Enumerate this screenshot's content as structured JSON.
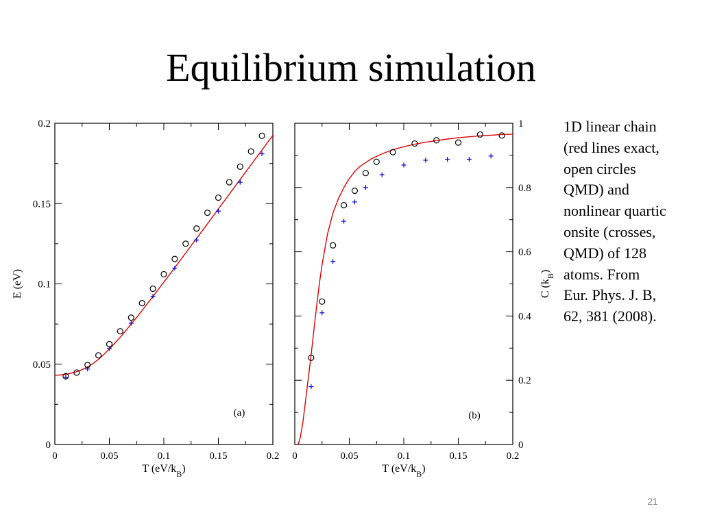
{
  "slide": {
    "title": "Equilibrium simulation",
    "caption_lines": [
      "1D linear chain",
      "(red lines exact,",
      "open circles",
      "QMD) and",
      "nonlinear quartic",
      "onsite (crosses,",
      "QMD) of 128",
      "atoms.  From",
      "Eur. Phys. J. B,",
      "62, 381 (2008)."
    ],
    "page_number": "21"
  },
  "colors": {
    "exact": "#e00000",
    "linear_qmd": "#000000",
    "quartic_qmd": "#0000e0",
    "axis": "#000000"
  },
  "chart_data": [
    {
      "type": "line",
      "panel_label": "(a)",
      "xlabel": "T (eV/k_B)",
      "ylabel": "E (eV)",
      "ylabel_side": "left",
      "xlim": [
        0,
        0.2
      ],
      "ylim": [
        0,
        0.2
      ],
      "xticks": [
        0,
        0.05,
        0.1,
        0.15,
        0.2
      ],
      "xtick_labels": [
        "0",
        "0.05",
        "0.1",
        "0.15",
        "0.2"
      ],
      "yticks": [
        0,
        0.05,
        0.1,
        0.15,
        0.2
      ],
      "ytick_labels": [
        "0",
        "0.05",
        "0.1",
        "0.15",
        "0.2"
      ],
      "grid": false,
      "series": [
        {
          "marker": "line",
          "x": [
            0,
            0.005,
            0.01,
            0.015,
            0.02,
            0.025,
            0.03,
            0.035,
            0.04,
            0.045,
            0.05,
            0.055,
            0.06,
            0.065,
            0.07,
            0.075,
            0.08,
            0.09,
            0.1,
            0.11,
            0.12,
            0.13,
            0.14,
            0.15,
            0.16,
            0.17,
            0.18,
            0.19,
            0.2
          ],
          "values": [
            0.0431,
            0.0433,
            0.0437,
            0.0444,
            0.0453,
            0.0466,
            0.0483,
            0.0504,
            0.053,
            0.0561,
            0.0594,
            0.0631,
            0.0668,
            0.0708,
            0.075,
            0.0791,
            0.0834,
            0.0922,
            0.1011,
            0.1101,
            0.1192,
            0.1283,
            0.1374,
            0.1466,
            0.1558,
            0.165,
            0.1742,
            0.1833,
            0.1925
          ]
        },
        {
          "marker": "circle",
          "x": [
            0.01,
            0.02,
            0.03,
            0.04,
            0.05,
            0.06,
            0.07,
            0.08,
            0.09,
            0.1,
            0.11,
            0.12,
            0.13,
            0.14,
            0.15,
            0.16,
            0.17,
            0.18,
            0.19
          ],
          "values": [
            0.0425,
            0.0448,
            0.0495,
            0.0555,
            0.0625,
            0.0705,
            0.079,
            0.088,
            0.097,
            0.106,
            0.1155,
            0.125,
            0.1345,
            0.1443,
            0.1537,
            0.1633,
            0.173,
            0.1825,
            0.1922
          ]
        },
        {
          "marker": "plus",
          "x": [
            0.01,
            0.03,
            0.05,
            0.07,
            0.09,
            0.11,
            0.13,
            0.15,
            0.17,
            0.19
          ],
          "values": [
            0.0418,
            0.047,
            0.0598,
            0.0755,
            0.0923,
            0.1098,
            0.1273,
            0.1453,
            0.1633,
            0.181
          ]
        }
      ]
    },
    {
      "type": "line",
      "panel_label": "(b)",
      "xlabel": "T (eV/k_B)",
      "ylabel": "C (k_B)",
      "ylabel_side": "right",
      "xlim": [
        0,
        0.2
      ],
      "ylim": [
        0,
        1
      ],
      "xticks": [
        0,
        0.05,
        0.1,
        0.15,
        0.2
      ],
      "xtick_labels": [
        "0",
        "0.05",
        "0.1",
        "0.15",
        "0.2"
      ],
      "yticks": [
        0,
        0.2,
        0.4,
        0.6,
        0.8,
        1
      ],
      "ytick_labels": [
        "0",
        "0.2",
        "0.4",
        "0.6",
        "0.8",
        "1"
      ],
      "grid": false,
      "series": [
        {
          "marker": "line",
          "x": [
            0.003,
            0.005,
            0.0075,
            0.01,
            0.0125,
            0.015,
            0.0175,
            0.02,
            0.0225,
            0.025,
            0.03,
            0.035,
            0.04,
            0.045,
            0.05,
            0.055,
            0.06,
            0.07,
            0.08,
            0.09,
            0.1,
            0.11,
            0.12,
            0.13,
            0.14,
            0.15,
            0.16,
            0.17,
            0.18,
            0.19,
            0.2
          ],
          "values": [
            0.0,
            0.02,
            0.07,
            0.14,
            0.21,
            0.28,
            0.355,
            0.43,
            0.5,
            0.56,
            0.655,
            0.72,
            0.765,
            0.8,
            0.828,
            0.85,
            0.866,
            0.889,
            0.905,
            0.918,
            0.927,
            0.935,
            0.941,
            0.946,
            0.951,
            0.955,
            0.958,
            0.961,
            0.963,
            0.965,
            0.966
          ]
        },
        {
          "marker": "circle",
          "x": [
            0.015,
            0.025,
            0.035,
            0.045,
            0.055,
            0.065,
            0.075,
            0.09,
            0.11,
            0.13,
            0.15,
            0.17,
            0.19
          ],
          "values": [
            0.27,
            0.445,
            0.62,
            0.745,
            0.79,
            0.845,
            0.88,
            0.91,
            0.937,
            0.947,
            0.94,
            0.965,
            0.962
          ]
        },
        {
          "marker": "plus",
          "x": [
            0.015,
            0.025,
            0.035,
            0.045,
            0.055,
            0.065,
            0.08,
            0.1,
            0.12,
            0.14,
            0.16,
            0.18
          ],
          "values": [
            0.18,
            0.41,
            0.57,
            0.695,
            0.755,
            0.8,
            0.84,
            0.87,
            0.885,
            0.888,
            0.888,
            0.898
          ]
        }
      ]
    }
  ]
}
